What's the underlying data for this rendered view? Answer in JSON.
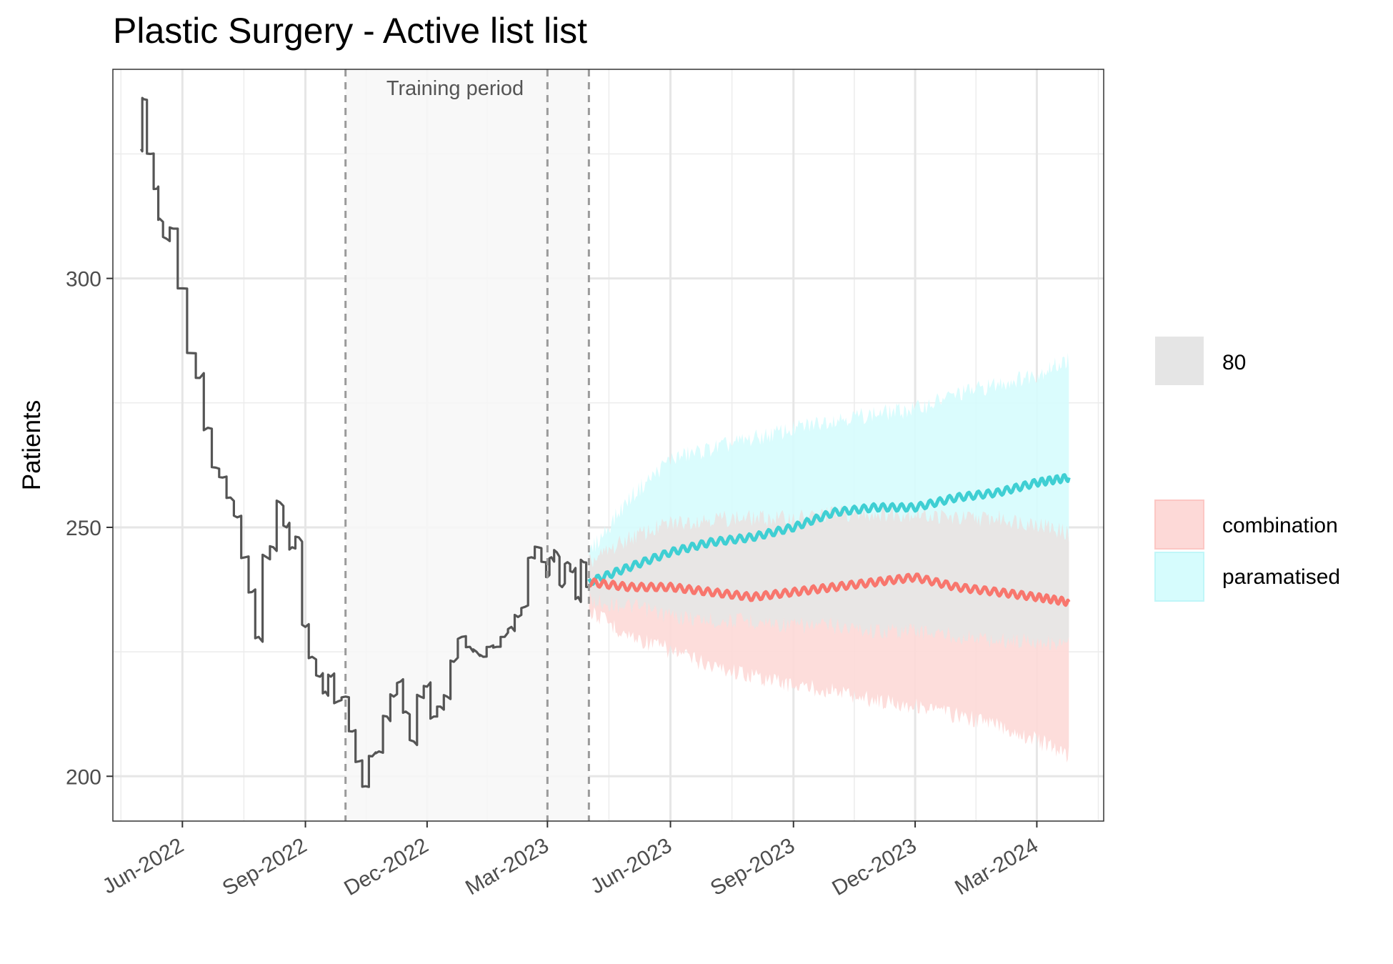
{
  "chart_data": {
    "type": "line",
    "title": "Plastic Surgery - Active list list",
    "xlabel": "",
    "ylabel": "Patients",
    "x_tick_labels": [
      "Jun-2022",
      "Sep-2022",
      "Dec-2022",
      "Mar-2023",
      "Jun-2023",
      "Sep-2023",
      "Dec-2023",
      "Mar-2024"
    ],
    "x_ticks": [
      "2022-06-01",
      "2022-09-01",
      "2022-12-01",
      "2023-03-01",
      "2023-06-01",
      "2023-09-01",
      "2023-12-01",
      "2024-03-01"
    ],
    "y_ticks": [
      200,
      250,
      300
    ],
    "xlim": [
      "2022-04-10",
      "2024-04-20"
    ],
    "ylim": [
      191,
      342
    ],
    "grid": true,
    "annotation": {
      "text": "Training period",
      "start": "2022-10-01",
      "end": "2023-04-01",
      "markers": [
        "2022-10-01",
        "2023-03-01",
        "2023-04-01"
      ]
    },
    "legend": {
      "position": "right",
      "interval_label": "80",
      "entries": [
        "combination",
        "paramatised"
      ]
    },
    "colors": {
      "actual": "#555555",
      "combination": "#f8766d",
      "paramatised": "#3fcfd3",
      "combination_band": "#fdd9d7",
      "paramatised_band": "#d6fcfd",
      "overlap_band": "#e2e8e8",
      "training_band": "#f7f7f7",
      "marker": "#9a9a9a"
    },
    "series": [
      {
        "name": "",
        "role": "actual",
        "x": [
          "2022-05-01",
          "2022-05-03",
          "2022-05-08",
          "2022-05-13",
          "2022-05-15",
          "2022-05-20",
          "2022-05-25",
          "2022-06-01",
          "2022-06-08",
          "2022-06-14",
          "2022-06-20",
          "2022-06-26",
          "2022-07-01",
          "2022-07-07",
          "2022-07-12",
          "2022-07-18",
          "2022-07-23",
          "2022-07-28",
          "2022-08-03",
          "2022-08-08",
          "2022-08-13",
          "2022-08-18",
          "2022-08-22",
          "2022-08-27",
          "2022-09-01",
          "2022-09-06",
          "2022-09-12",
          "2022-09-16",
          "2022-09-20",
          "2022-09-25",
          "2022-10-01",
          "2022-10-06",
          "2022-10-11",
          "2022-10-16",
          "2022-10-21",
          "2022-10-26",
          "2022-11-01",
          "2022-11-06",
          "2022-11-11",
          "2022-11-15",
          "2022-11-21",
          "2022-11-26",
          "2022-12-01",
          "2022-12-06",
          "2022-12-11",
          "2022-12-16",
          "2022-12-21",
          "2022-12-27",
          "2023-01-02",
          "2023-01-07",
          "2023-01-12",
          "2023-01-17",
          "2023-01-22",
          "2023-01-28",
          "2023-02-02",
          "2023-02-07",
          "2023-02-12",
          "2023-02-17",
          "2023-02-22",
          "2023-02-27",
          "2023-03-01",
          "2023-03-04",
          "2023-03-08",
          "2023-03-12",
          "2023-03-16",
          "2023-03-20",
          "2023-03-24",
          "2023-03-28",
          "2023-04-01"
        ],
        "y": [
          326,
          336,
          325,
          318,
          312,
          308,
          310,
          298,
          285,
          280,
          270,
          262,
          260,
          256,
          252,
          244,
          237,
          228,
          244,
          246,
          255,
          250,
          246,
          248,
          230,
          224,
          220,
          217,
          220,
          215,
          216,
          209,
          203,
          198,
          204,
          205,
          212,
          216,
          219,
          213,
          207,
          216,
          218,
          212,
          214,
          216,
          223,
          228,
          226,
          225,
          224,
          226,
          226,
          228,
          230,
          232,
          234,
          244,
          246,
          243,
          240,
          244,
          245,
          238,
          243,
          241,
          236,
          243,
          238
        ]
      },
      {
        "name": "paramatised",
        "x": [
          "2023-04-01",
          "2023-05-01",
          "2023-06-01",
          "2023-07-01",
          "2023-08-01",
          "2023-09-01",
          "2023-10-01",
          "2023-11-01",
          "2023-12-01",
          "2024-01-01",
          "2024-02-01",
          "2024-03-01",
          "2024-03-25"
        ],
        "y": [
          239,
          242,
          245,
          247,
          248,
          250,
          253,
          254,
          254,
          256,
          257,
          259,
          260
        ],
        "lower": [
          237,
          236,
          234,
          233,
          233,
          232,
          232,
          231,
          231,
          230,
          229,
          229,
          228
        ],
        "upper": [
          243,
          254,
          262,
          264,
          266,
          268,
          270,
          271,
          272,
          275,
          277,
          279,
          282
        ]
      },
      {
        "name": "combination",
        "x": [
          "2023-04-01",
          "2023-05-01",
          "2023-06-01",
          "2023-07-01",
          "2023-08-01",
          "2023-09-01",
          "2023-10-01",
          "2023-11-01",
          "2023-12-01",
          "2024-01-01",
          "2024-02-01",
          "2024-03-01",
          "2024-03-25"
        ],
        "y": [
          239,
          238,
          238,
          237,
          236,
          237,
          238,
          239,
          240,
          238,
          237,
          236,
          235
        ],
        "lower": [
          235,
          230,
          227,
          224,
          222,
          220,
          219,
          217,
          216,
          214,
          212,
          209,
          206
        ],
        "upper": [
          241,
          246,
          249,
          250,
          250,
          250,
          251,
          251,
          251,
          250,
          250,
          249,
          247
        ]
      }
    ]
  }
}
